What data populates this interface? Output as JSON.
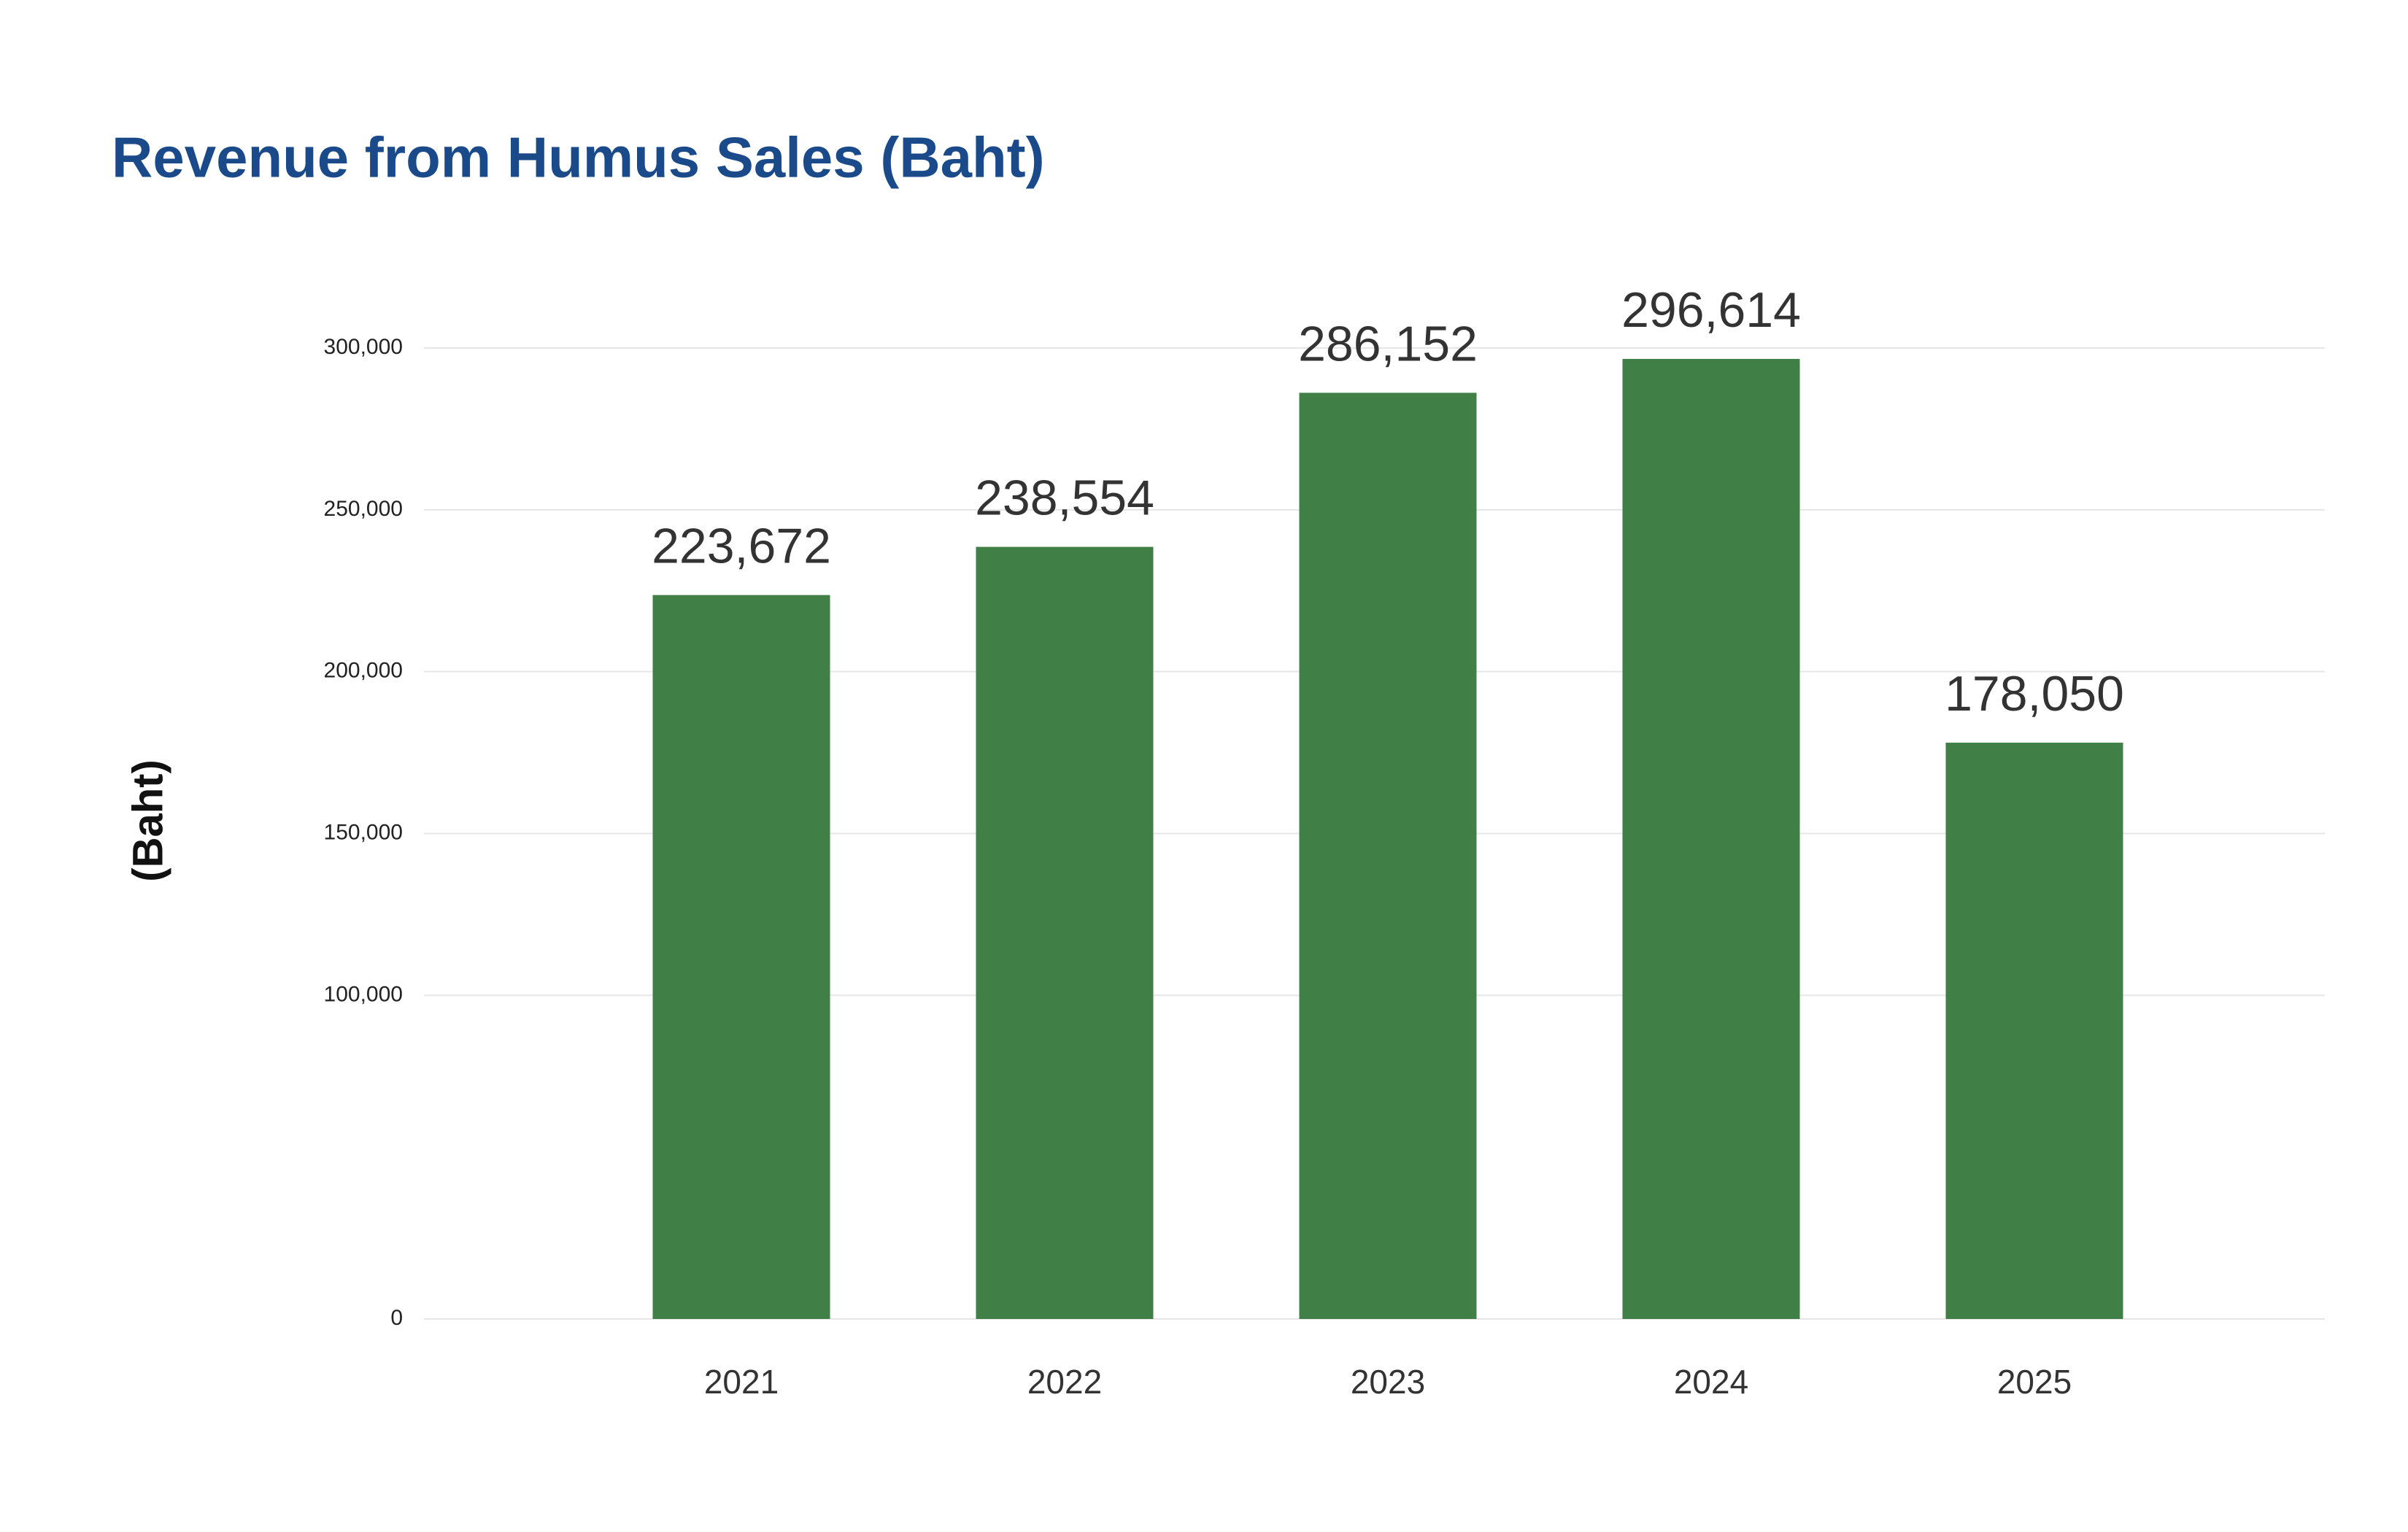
{
  "chart_data": {
    "type": "bar",
    "title": "Revenue from Humus Sales (Baht)",
    "y_label": "(Baht)",
    "categories": [
      "2021",
      "2022",
      "2023",
      "2024",
      "2025"
    ],
    "values": [
      223672,
      238554,
      286152,
      296614,
      178050
    ],
    "value_labels": [
      "223,672",
      "238,554",
      "286,152",
      "296,614",
      "178,050"
    ],
    "color": "#407f46",
    "ylim": [
      0,
      300000
    ],
    "yticks": [
      0,
      {
        "value": 100000,
        "label": "100,000"
      },
      {
        "value": 150000,
        "label": "150,000"
      },
      {
        "value": 200000,
        "label": "200,000"
      },
      {
        "value": 250000,
        "label": "250,000"
      },
      {
        "value": 300000,
        "label": "300,000"
      }
    ],
    "grid": true
  }
}
